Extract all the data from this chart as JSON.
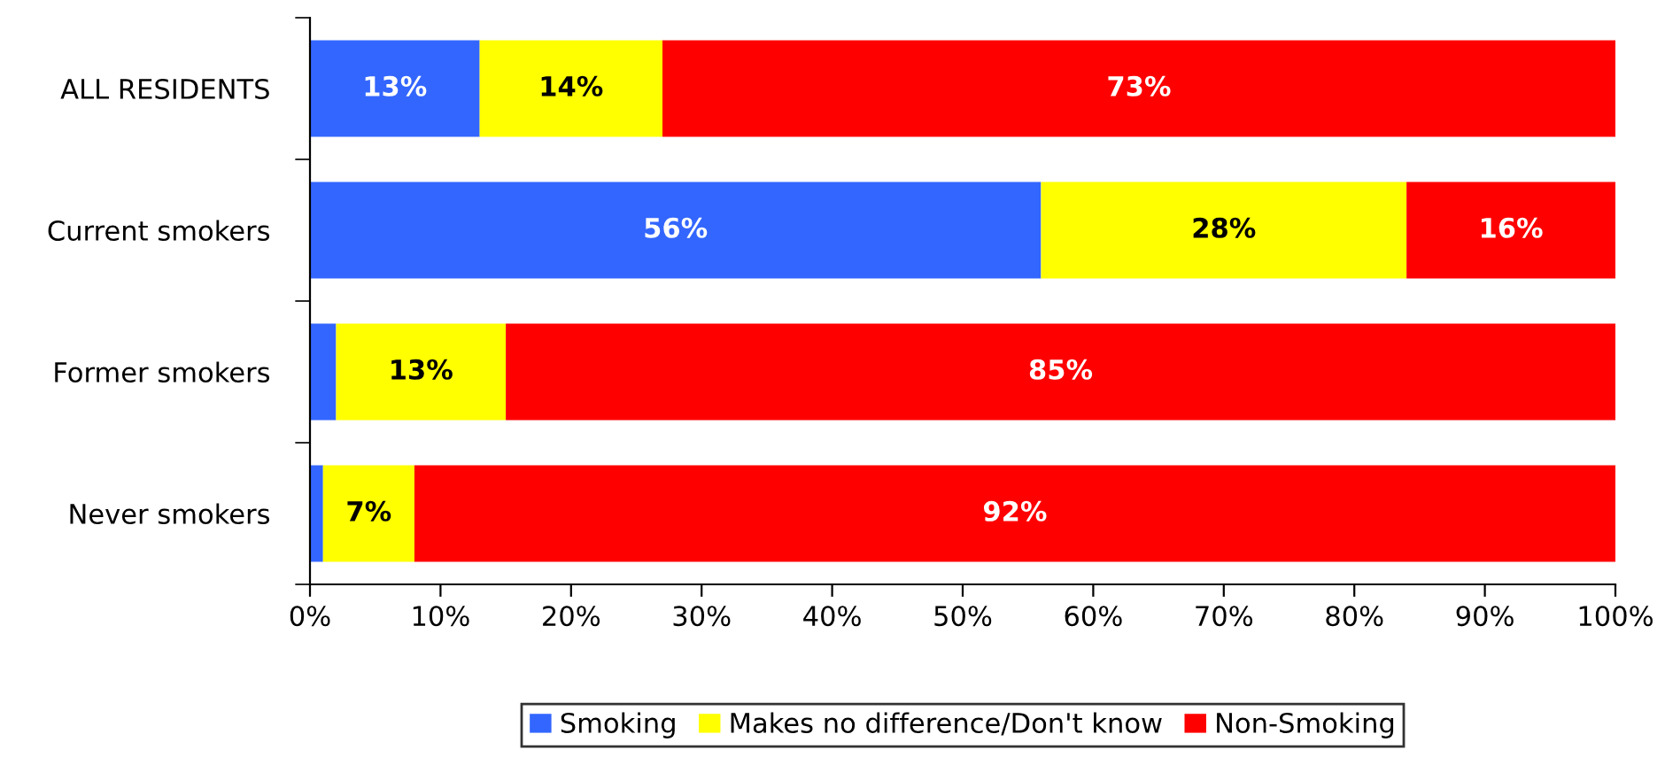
{
  "chart_data": {
    "type": "bar",
    "orientation": "horizontal",
    "stacked": true,
    "categories": [
      "ALL RESIDENTS",
      "Current smokers",
      "Former smokers",
      "Never smokers"
    ],
    "series": [
      {
        "name": "Smoking",
        "color": "#3366ff",
        "values": [
          13,
          56,
          2,
          1
        ],
        "value_labels": [
          "13%",
          "56%",
          null,
          null
        ]
      },
      {
        "name": "Makes no difference/Don't know",
        "color": "#ffff00",
        "values": [
          14,
          28,
          13,
          7
        ],
        "value_labels": [
          "14%",
          "28%",
          "13%",
          "7%"
        ]
      },
      {
        "name": "Non-Smoking",
        "color": "#ff0000",
        "values": [
          73,
          16,
          85,
          92
        ],
        "value_labels": [
          "73%",
          "16%",
          "85%",
          "92%"
        ]
      }
    ],
    "xlim": [
      0,
      100
    ],
    "xticks": [
      {
        "value": 0,
        "label": "0%"
      },
      {
        "value": 10,
        "label": "10%"
      },
      {
        "value": 20,
        "label": "20%"
      },
      {
        "value": 30,
        "label": "30%"
      },
      {
        "value": 40,
        "label": "40%"
      },
      {
        "value": 50,
        "label": "50%"
      },
      {
        "value": 60,
        "label": "60%"
      },
      {
        "value": 70,
        "label": "70%"
      },
      {
        "value": 80,
        "label": "80%"
      },
      {
        "value": 90,
        "label": "90%"
      },
      {
        "value": 100,
        "label": "100%"
      }
    ],
    "grid": false,
    "legend": "bottom"
  }
}
